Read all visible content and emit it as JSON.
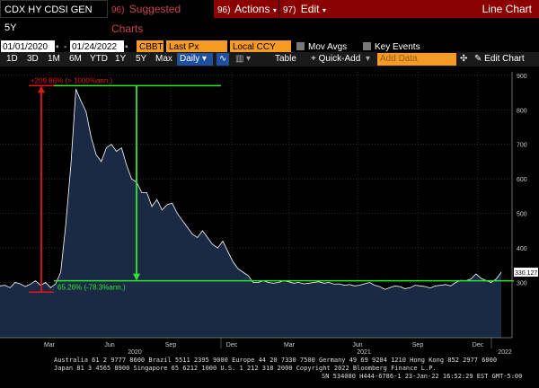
{
  "toolbar": {
    "ticker": "CDX HY CDSI GEN 5Y",
    "suggested_num": "96)",
    "suggested": "Suggested Charts",
    "actions_num": "96)",
    "actions": "Actions",
    "edit_num": "97)",
    "edit": "Edit",
    "mode": "Line Chart"
  },
  "params": {
    "start_date": "01/01/2020",
    "end_date": "01/24/2022",
    "source": "CBBT",
    "field": "Last Px",
    "currency": "Local CCY",
    "mov_avgs": "Mov Avgs",
    "key_events": "Key Events"
  },
  "periods": {
    "p1d": "1D",
    "p3d": "3D",
    "p1m": "1M",
    "p6m": "6M",
    "ytd": "YTD",
    "p1y": "1Y",
    "p5y": "5Y",
    "max": "Max",
    "freq": "Daily",
    "table": "Table",
    "quick_add": "+ Quick-Add",
    "add_data": "Add Data",
    "edit_chart": "Edit Chart"
  },
  "annotations": {
    "top_pct": "+209.86% (> 1000%ann.)",
    "bottom_pct": "65.26% (-78.3%ann.)",
    "last_value": "330.127"
  },
  "chart_data": {
    "type": "area",
    "ylim": [
      140,
      910
    ],
    "y_ticks": [
      "900",
      "800",
      "700",
      "600",
      "500",
      "400",
      "300"
    ],
    "y_tick_values": [
      900,
      800,
      700,
      600,
      500,
      400,
      300
    ],
    "x_ticks": [
      "Mar",
      "Jun",
      "Sep",
      "Dec",
      "Mar",
      "Jun",
      "Sep",
      "Dec"
    ],
    "year_labels": [
      "2020",
      "2021",
      "2022"
    ],
    "series": [
      {
        "values": [
          290,
          292,
          285,
          300,
          296,
          288,
          295,
          305,
          292,
          300,
          285,
          296,
          330,
          470,
          640,
          860,
          825,
          795,
          720,
          670,
          650,
          690,
          700,
          680,
          690,
          640,
          600,
          590,
          560,
          560,
          520,
          540,
          510,
          525,
          530,
          500,
          480,
          460,
          440,
          430,
          450,
          430,
          410,
          400,
          420,
          390,
          360,
          340,
          330,
          320,
          300,
          300,
          305,
          300,
          298,
          300,
          305,
          302,
          298,
          300,
          296,
          298,
          300,
          302,
          298,
          300,
          295,
          296,
          292,
          294,
          290,
          292,
          296,
          300,
          292,
          288,
          280,
          285,
          290,
          288,
          282,
          285,
          292,
          290,
          288,
          284,
          290,
          292,
          294,
          290,
          300,
          306,
          305,
          310,
          325,
          312,
          306,
          300,
          310,
          330
        ]
      }
    ],
    "levels": {
      "top": 870,
      "bottom": 305,
      "drop": 305
    }
  },
  "footer": {
    "line1": "Australia 61 2 9777 8600 Brazil 5511 2395 9000 Europe 44 20 7330 7500 Germany 49 69 9204 1210 Hong Kong 852 2977 6000",
    "line2": "Japan 81 3 4565 8900       Singapore 65 6212 1000       U.S. 1 212 318 2000       Copyright 2022 Bloomberg Finance L.P.",
    "line3": "SN 534080 H444-6786-1 23-Jan-22 16:52:29 EST  GMT-5:00"
  },
  "colors": {
    "area": "#1b2a44",
    "line": "#ffffff",
    "red": "#e0161b",
    "green": "#2ee82e",
    "accent": "#f59a23"
  }
}
